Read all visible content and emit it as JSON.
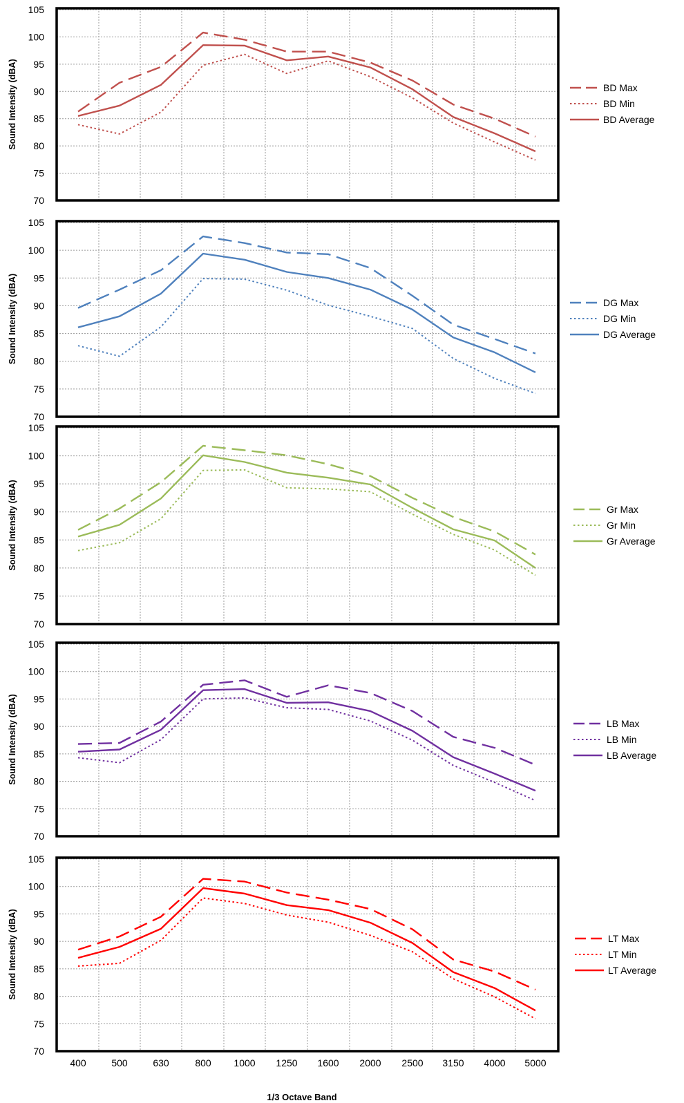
{
  "chart_data": [
    {
      "type": "line",
      "categories": [
        "400",
        "500",
        "630",
        "800",
        "1000",
        "1250",
        "1600",
        "2000",
        "2500",
        "3150",
        "4000",
        "5000"
      ],
      "ylabel": "Sound Intensity (dBA)",
      "xlabel": "",
      "ylim": [
        70,
        105
      ],
      "yticks": [
        "70",
        "75",
        "80",
        "85",
        "90",
        "95",
        "100",
        "105"
      ],
      "grid": true,
      "legend": "right",
      "color": "#c0504d",
      "series": [
        {
          "name": "BD Max",
          "dash": "long-dash",
          "values": [
            86.3,
            91.6,
            94.5,
            100.8,
            99.5,
            97.3,
            97.3,
            95.3,
            92.0,
            87.6,
            85.0,
            81.7
          ]
        },
        {
          "name": "BD Min",
          "dash": "dotted",
          "values": [
            83.9,
            82.2,
            86.2,
            94.8,
            96.8,
            93.3,
            95.6,
            92.7,
            88.8,
            84.2,
            80.7,
            77.4
          ]
        },
        {
          "name": "BD Average",
          "dash": "solid",
          "values": [
            85.5,
            87.4,
            91.2,
            98.5,
            98.4,
            95.7,
            96.4,
            94.4,
            90.4,
            85.3,
            82.3,
            79.0
          ]
        }
      ]
    },
    {
      "type": "line",
      "categories": [
        "400",
        "500",
        "630",
        "800",
        "1000",
        "1250",
        "1600",
        "2000",
        "2500",
        "3150",
        "4000",
        "5000"
      ],
      "ylabel": "Sound Intensity (dBA)",
      "xlabel": "",
      "ylim": [
        70,
        105
      ],
      "yticks": [
        "70",
        "75",
        "80",
        "85",
        "90",
        "95",
        "100",
        "105"
      ],
      "grid": true,
      "legend": "right",
      "color": "#4f81bd",
      "series": [
        {
          "name": "DG Max",
          "dash": "long-dash",
          "values": [
            89.6,
            92.9,
            96.4,
            102.5,
            101.3,
            99.6,
            99.3,
            96.8,
            91.8,
            86.6,
            84.0,
            81.4
          ]
        },
        {
          "name": "DG Min",
          "dash": "dotted",
          "values": [
            82.8,
            80.9,
            86.2,
            94.9,
            94.8,
            92.8,
            90.1,
            88.1,
            85.9,
            80.5,
            76.9,
            74.2
          ]
        },
        {
          "name": "DG Average",
          "dash": "solid",
          "values": [
            86.1,
            88.1,
            92.2,
            99.4,
            98.3,
            96.1,
            95.0,
            92.9,
            89.3,
            84.3,
            81.6,
            78.0
          ]
        }
      ]
    },
    {
      "type": "line",
      "categories": [
        "400",
        "500",
        "630",
        "800",
        "1000",
        "1250",
        "1600",
        "2000",
        "2500",
        "3150",
        "4000",
        "5000"
      ],
      "ylabel": "Sound Intensity (dBA)",
      "xlabel": "",
      "ylim": [
        70,
        105
      ],
      "yticks": [
        "70",
        "75",
        "80",
        "85",
        "90",
        "95",
        "100",
        "105"
      ],
      "grid": true,
      "legend": "right",
      "color": "#9bbb59",
      "series": [
        {
          "name": "Gr Max",
          "dash": "long-dash",
          "values": [
            86.8,
            90.6,
            95.3,
            101.8,
            101.0,
            100.1,
            98.5,
            96.4,
            92.5,
            89.1,
            86.5,
            82.4
          ]
        },
        {
          "name": "Gr Min",
          "dash": "dotted",
          "values": [
            83.1,
            84.5,
            88.8,
            97.4,
            97.5,
            94.3,
            94.1,
            93.6,
            89.6,
            86.0,
            83.2,
            78.7
          ]
        },
        {
          "name": "Gr Average",
          "dash": "solid",
          "values": [
            85.6,
            87.7,
            92.4,
            100.1,
            98.9,
            97.0,
            96.1,
            94.9,
            90.7,
            86.9,
            84.9,
            80.0
          ]
        }
      ]
    },
    {
      "type": "line",
      "categories": [
        "400",
        "500",
        "630",
        "800",
        "1000",
        "1250",
        "1600",
        "2000",
        "2500",
        "3150",
        "4000",
        "5000"
      ],
      "ylabel": "Sound Intensity (dBA)",
      "xlabel": "",
      "ylim": [
        70,
        105
      ],
      "yticks": [
        "70",
        "75",
        "80",
        "85",
        "90",
        "95",
        "100",
        "105"
      ],
      "grid": true,
      "legend": "right",
      "color": "#7030a0",
      "series": [
        {
          "name": "LB Max",
          "dash": "long-dash",
          "values": [
            86.8,
            87.0,
            90.9,
            97.6,
            98.4,
            95.4,
            97.5,
            96.1,
            92.8,
            88.1,
            86.1,
            83.0
          ]
        },
        {
          "name": "LB Min",
          "dash": "dotted",
          "values": [
            84.3,
            83.4,
            87.6,
            95.0,
            95.2,
            93.4,
            93.1,
            91.0,
            87.5,
            82.9,
            79.8,
            76.5
          ]
        },
        {
          "name": "LB Average",
          "dash": "solid",
          "values": [
            85.4,
            85.8,
            89.4,
            96.6,
            96.8,
            94.3,
            94.4,
            92.8,
            89.2,
            84.4,
            81.4,
            78.3
          ]
        }
      ]
    },
    {
      "type": "line",
      "categories": [
        "400",
        "500",
        "630",
        "800",
        "1000",
        "1250",
        "1600",
        "2000",
        "2500",
        "3150",
        "4000",
        "5000"
      ],
      "ylabel": "Sound Intensity (dBA)",
      "xlabel": "1/3 Octave Band",
      "ylim": [
        70,
        105
      ],
      "yticks": [
        "70",
        "75",
        "80",
        "85",
        "90",
        "95",
        "100",
        "105"
      ],
      "grid": true,
      "legend": "right",
      "color": "#ff0000",
      "series": [
        {
          "name": "LT Max",
          "dash": "long-dash",
          "values": [
            88.5,
            90.9,
            94.5,
            101.4,
            100.9,
            98.9,
            97.6,
            95.9,
            92.2,
            86.7,
            84.5,
            81.2
          ]
        },
        {
          "name": "LT Min",
          "dash": "dotted",
          "values": [
            85.5,
            86.0,
            90.2,
            97.9,
            96.9,
            94.8,
            93.5,
            91.1,
            88.1,
            83.2,
            79.9,
            75.9
          ]
        },
        {
          "name": "LT Average",
          "dash": "solid",
          "values": [
            87.0,
            89.0,
            92.3,
            99.7,
            98.7,
            96.6,
            95.7,
            93.4,
            89.7,
            84.4,
            81.5,
            77.4
          ]
        }
      ]
    }
  ]
}
